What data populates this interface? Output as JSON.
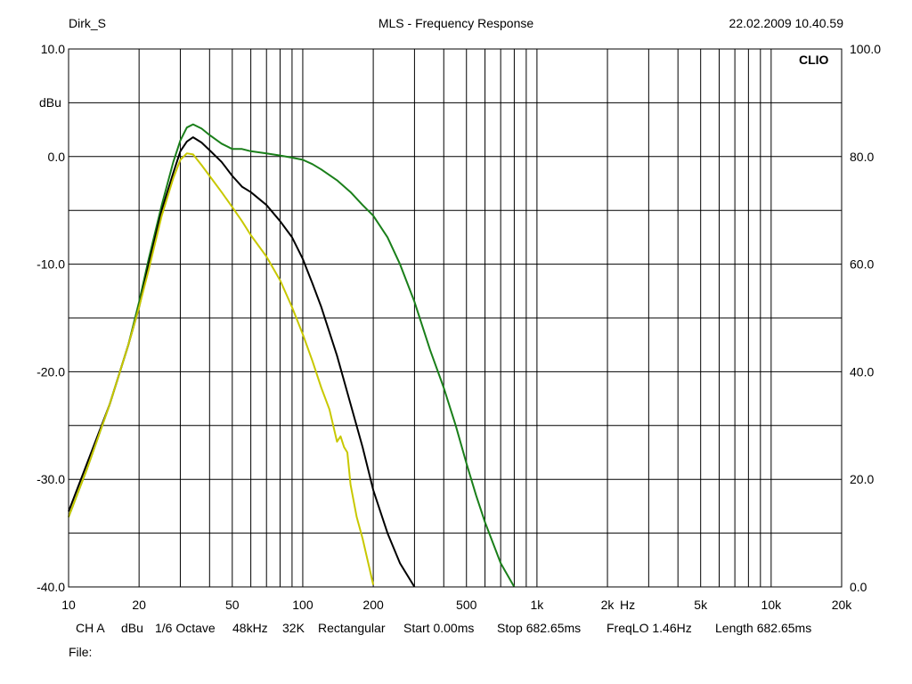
{
  "header": {
    "left": "Dirk_S",
    "center": "MLS - Frequency Response",
    "right": "22.02.2009 10.40.59"
  },
  "status": {
    "channel": "CH A",
    "unit": "dBu",
    "smoothing": "1/6 Octave",
    "rate": "48kHz",
    "size": "32K",
    "window": "Rectangular",
    "start": "Start 0.00ms",
    "stop": "Stop 682.65ms",
    "freqlo": "FreqLO 1.46Hz",
    "length": "Length 682.65ms"
  },
  "file_label": "File:",
  "colors": {
    "green": "#1a7f1a",
    "black": "#000000",
    "yellow": "#c8c800",
    "grid": "#000000"
  },
  "chart_data": {
    "type": "line",
    "title": "MLS - Frequency Response",
    "brand": "CLIO",
    "ylabel": "dBu",
    "xlabel": "Hz",
    "x_scale": "log",
    "xlim": [
      10,
      20000
    ],
    "ylim": [
      -40,
      10
    ],
    "ylim_right": [
      0,
      100
    ],
    "grid": true,
    "x_tick_labels": [
      {
        "value": 10,
        "label": "10"
      },
      {
        "value": 20,
        "label": "20"
      },
      {
        "value": 50,
        "label": "50"
      },
      {
        "value": 100,
        "label": "100"
      },
      {
        "value": 200,
        "label": "200"
      },
      {
        "value": 500,
        "label": "500"
      },
      {
        "value": 1000,
        "label": "1k"
      },
      {
        "value": 2000,
        "label": "2k"
      },
      {
        "value": 5000,
        "label": "5k"
      },
      {
        "value": 10000,
        "label": "10k"
      },
      {
        "value": 20000,
        "label": "20k"
      }
    ],
    "y_tick_labels": [
      {
        "value": 10,
        "label": "10.0"
      },
      {
        "value": 0,
        "label": "0.0"
      },
      {
        "value": -10,
        "label": "-10.0"
      },
      {
        "value": -20,
        "label": "-20.0"
      },
      {
        "value": -30,
        "label": "-30.0"
      },
      {
        "value": -40,
        "label": "-40.0"
      }
    ],
    "y_right_tick_labels": [
      {
        "value": 10,
        "label": "100.0"
      },
      {
        "value": 0,
        "label": "80.0"
      },
      {
        "value": -10,
        "label": "60.0"
      },
      {
        "value": -20,
        "label": "40.0"
      },
      {
        "value": -30,
        "label": "20.0"
      },
      {
        "value": -40,
        "label": "0.0"
      }
    ],
    "series": [
      {
        "color": "#1a7f1a",
        "x": [
          10,
          12,
          15,
          18,
          20,
          22,
          25,
          28,
          30,
          32,
          34,
          37,
          40,
          45,
          50,
          55,
          60,
          70,
          80,
          90,
          100,
          110,
          120,
          140,
          160,
          180,
          200,
          230,
          260,
          300,
          350,
          400,
          450,
          500,
          550,
          600,
          700,
          800
        ],
        "y": [
          -33.5,
          -29,
          -23,
          -17.5,
          -13.5,
          -9.5,
          -4.5,
          -0.5,
          1.5,
          2.7,
          3.0,
          2.6,
          2.0,
          1.2,
          0.7,
          0.7,
          0.5,
          0.3,
          0.1,
          -0.1,
          -0.3,
          -0.7,
          -1.2,
          -2.2,
          -3.3,
          -4.5,
          -5.5,
          -7.5,
          -10,
          -13.5,
          -18,
          -21.5,
          -25,
          -28.5,
          -31.5,
          -34,
          -37.8,
          -40
        ]
      },
      {
        "color": "#000000",
        "x": [
          10,
          12,
          15,
          18,
          20,
          22,
          25,
          28,
          30,
          32,
          34,
          37,
          40,
          45,
          50,
          55,
          60,
          70,
          80,
          90,
          100,
          110,
          120,
          140,
          160,
          180,
          200,
          230,
          260,
          300
        ],
        "y": [
          -33,
          -28.5,
          -23,
          -17.5,
          -14,
          -10,
          -5,
          -1.5,
          0.5,
          1.4,
          1.8,
          1.3,
          0.6,
          -0.5,
          -1.8,
          -2.8,
          -3.3,
          -4.5,
          -6,
          -7.5,
          -9.5,
          -11.8,
          -14,
          -18.5,
          -23,
          -27,
          -31,
          -35,
          -37.8,
          -40
        ]
      },
      {
        "color": "#c8c800",
        "x": [
          10,
          12,
          15,
          18,
          20,
          22,
          25,
          28,
          30,
          32,
          34,
          37,
          40,
          45,
          50,
          55,
          60,
          70,
          80,
          90,
          100,
          110,
          120,
          130,
          140,
          145,
          150,
          155,
          160,
          170,
          180,
          200
        ],
        "y": [
          -33.5,
          -29,
          -23,
          -17.5,
          -14,
          -10.5,
          -5.5,
          -2,
          -0.3,
          0.3,
          0.2,
          -0.8,
          -1.8,
          -3.3,
          -4.7,
          -6,
          -7.3,
          -9.3,
          -11.5,
          -14,
          -16.5,
          -19,
          -21.5,
          -23.5,
          -26.5,
          -26,
          -27,
          -27.5,
          -30.5,
          -33.5,
          -35.5,
          -39.8
        ]
      }
    ]
  }
}
